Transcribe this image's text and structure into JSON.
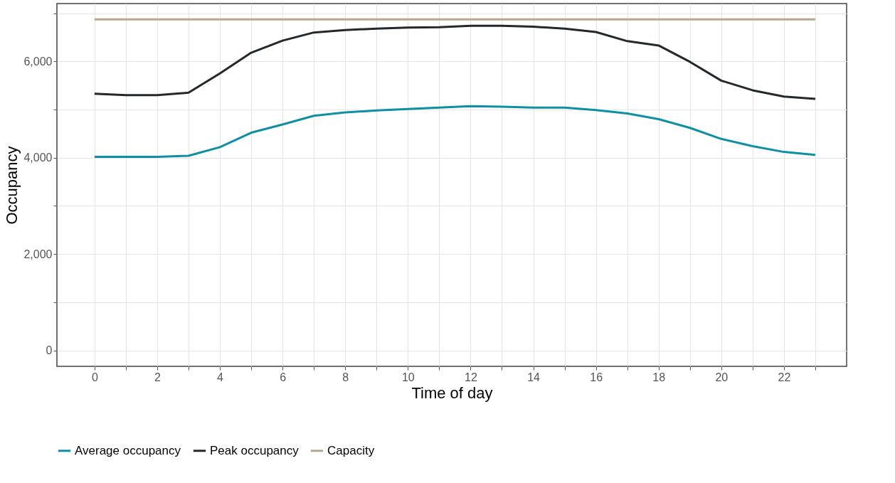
{
  "chart_data": {
    "type": "line",
    "xlabel": "Time of day",
    "ylabel": "Occupancy",
    "x": [
      0,
      1,
      2,
      3,
      4,
      5,
      6,
      7,
      8,
      9,
      10,
      11,
      12,
      13,
      14,
      15,
      16,
      17,
      18,
      19,
      20,
      21,
      22,
      23
    ],
    "series": [
      {
        "name": "Average occupancy",
        "color": "#0e8fa3",
        "values": [
          4020,
          4020,
          4020,
          4040,
          4220,
          4520,
          4690,
          4870,
          4940,
          4980,
          5010,
          5040,
          5070,
          5060,
          5040,
          5040,
          4990,
          4920,
          4800,
          4620,
          4390,
          4240,
          4120,
          4060
        ]
      },
      {
        "name": "Peak occupancy",
        "color": "#23282d",
        "values": [
          5330,
          5300,
          5300,
          5350,
          5750,
          6180,
          6430,
          6600,
          6650,
          6680,
          6700,
          6710,
          6740,
          6740,
          6720,
          6680,
          6610,
          6420,
          6330,
          5990,
          5600,
          5400,
          5270,
          5220
        ]
      },
      {
        "name": "Capacity",
        "color": "#b5a88f",
        "values": [
          6870,
          6870,
          6870,
          6870,
          6870,
          6870,
          6870,
          6870,
          6870,
          6870,
          6870,
          6870,
          6870,
          6870,
          6870,
          6870,
          6870,
          6870,
          6870,
          6870,
          6870,
          6870,
          6870,
          6870
        ]
      }
    ],
    "xlim": [
      -1.2,
      24
    ],
    "xticks": [
      0,
      {
        "value": 1,
        "label": null
      },
      2,
      {
        "value": 3,
        "label": null
      },
      4,
      {
        "value": 5,
        "label": null
      },
      6,
      {
        "value": 7,
        "label": null
      },
      8,
      {
        "value": 9,
        "label": null
      },
      10,
      {
        "value": 11,
        "label": null
      },
      12,
      {
        "value": 13,
        "label": null
      },
      14,
      {
        "value": 15,
        "label": null
      },
      16,
      {
        "value": 17,
        "label": null
      },
      18,
      {
        "value": 19,
        "label": null
      },
      20,
      {
        "value": 21,
        "label": null
      },
      22,
      {
        "value": 23,
        "label": null
      }
    ],
    "ylim": [
      -330,
      7200
    ],
    "yticks": [
      {
        "value": 0,
        "label": "0"
      },
      {
        "value": 1000,
        "label": null
      },
      {
        "value": 2000,
        "label": "2,000"
      },
      {
        "value": 3000,
        "label": null
      },
      {
        "value": 4000,
        "label": "4,000"
      },
      {
        "value": 5000,
        "label": null
      },
      {
        "value": 6000,
        "label": "6,000"
      },
      {
        "value": 7000,
        "label": null
      }
    ],
    "grid": true,
    "legend": "bottom",
    "marker": "none",
    "line_style": "solid"
  }
}
